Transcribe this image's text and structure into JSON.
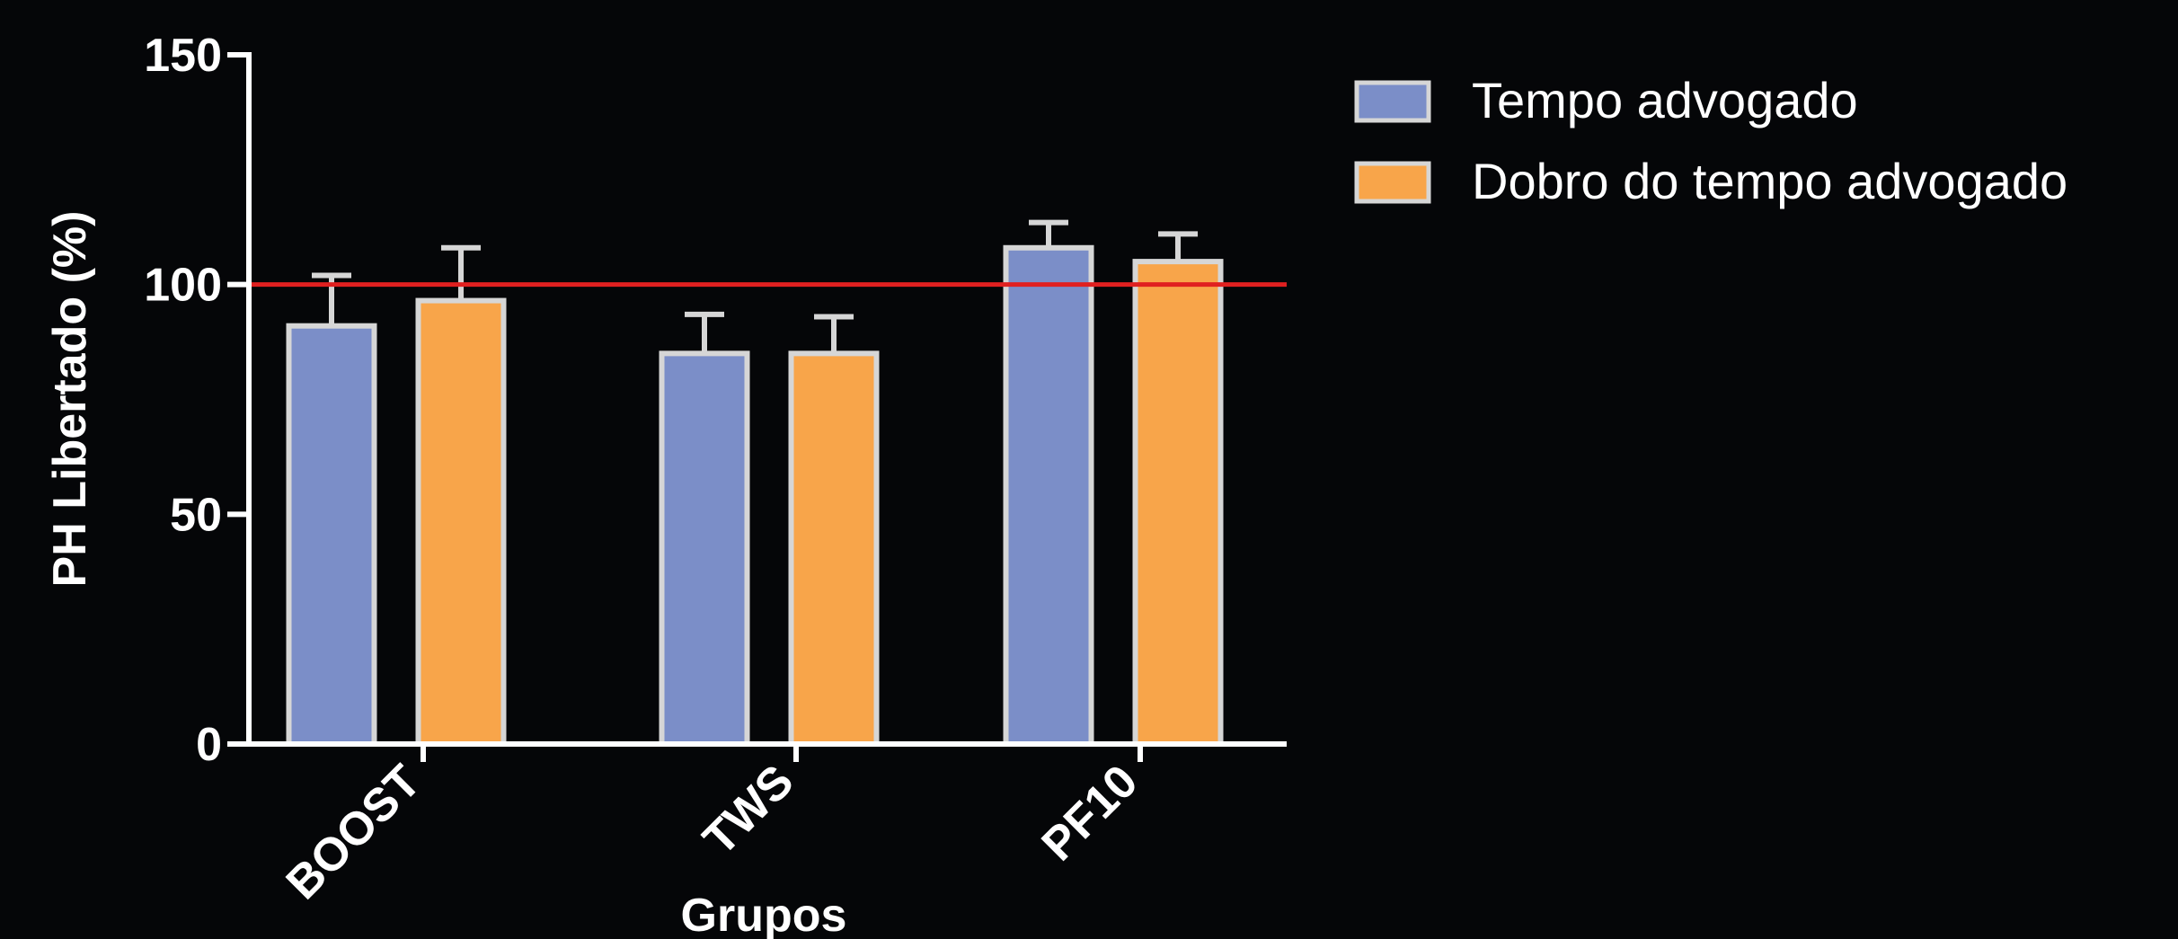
{
  "chart_data": {
    "type": "bar",
    "categories": [
      "BOOST",
      "TWS",
      "PF10"
    ],
    "series": [
      {
        "name": "Tempo advogado",
        "color": "#7b8ec8",
        "values": [
          91,
          85,
          108
        ],
        "error": [
          11,
          8.5,
          5.5
        ]
      },
      {
        "name": "Dobro do tempo advogado",
        "color": "#f8a54a",
        "values": [
          96.5,
          85,
          105
        ],
        "error": [
          11.5,
          8,
          6
        ]
      }
    ],
    "reference_line": {
      "value": 100,
      "color": "#e02020"
    },
    "xlabel": "Grupos",
    "ylabel": "PH Libertado (%)",
    "ylim": [
      0,
      150
    ],
    "yticks": [
      0,
      50,
      100,
      150
    ],
    "grid": false,
    "legend": "top-right",
    "colors": {
      "background": "#050608",
      "axis": "#ffffff",
      "bar_border": "#d6d6d6",
      "errorbar": "#d6d6d6"
    }
  }
}
